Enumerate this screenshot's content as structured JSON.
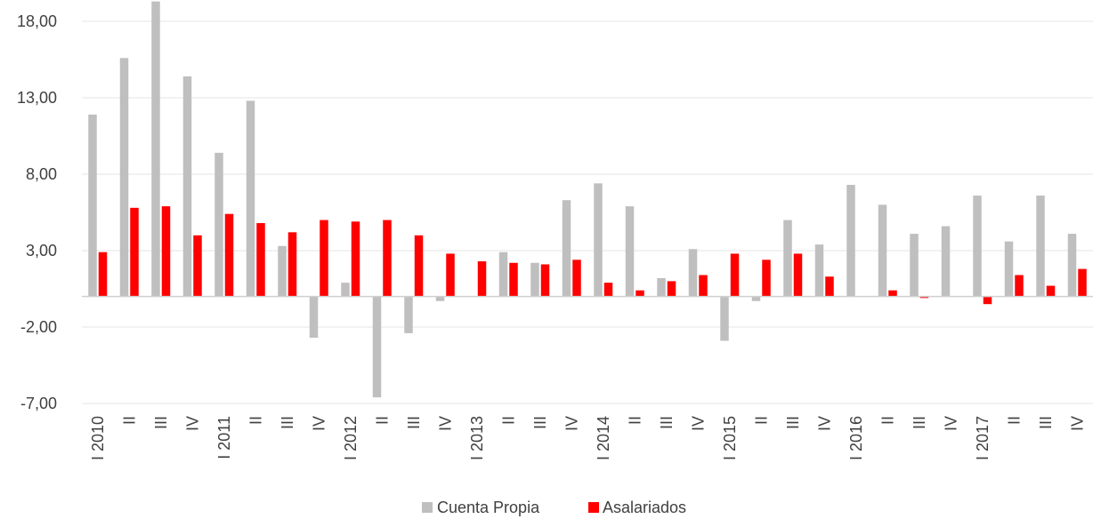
{
  "chart_data": {
    "type": "bar",
    "categories": [
      "I 2010",
      "II",
      "III",
      "IV",
      "I 2011",
      "II",
      "III",
      "IV",
      "I 2012",
      "II",
      "III",
      "IV",
      "I 2013",
      "II",
      "III",
      "IV",
      "I 2014",
      "II",
      "III",
      "IV",
      "I 2015",
      "II",
      "III",
      "IV",
      "I 2016",
      "II",
      "III",
      "IV",
      "I 2017",
      "II",
      "III",
      "IV"
    ],
    "series": [
      {
        "name": "Cuenta Propia",
        "color": "#bfbfbf",
        "values": [
          11.9,
          15.6,
          19.3,
          14.4,
          9.4,
          12.8,
          3.3,
          -2.7,
          0.9,
          -6.6,
          -2.4,
          -0.3,
          0.0,
          2.9,
          2.2,
          6.3,
          7.4,
          5.9,
          1.2,
          3.1,
          -2.9,
          -0.3,
          5.0,
          3.4,
          7.3,
          6.0,
          4.1,
          4.6,
          6.6,
          3.6,
          6.6,
          4.1
        ]
      },
      {
        "name": "Asalariados",
        "color": "#ff0000",
        "values": [
          2.9,
          5.8,
          5.9,
          4.0,
          5.4,
          4.8,
          4.2,
          5.0,
          4.9,
          5.0,
          4.0,
          2.8,
          2.3,
          2.2,
          2.1,
          2.4,
          0.9,
          0.4,
          1.0,
          1.4,
          2.8,
          2.4,
          2.8,
          1.3,
          0.0,
          0.4,
          -0.1,
          0.0,
          -0.5,
          1.4,
          0.7,
          1.8
        ]
      }
    ],
    "yticks": [
      "18,00",
      "13,00",
      "8,00",
      "3,00",
      "-2,00",
      "-7,00"
    ],
    "ytick_values": [
      18,
      13,
      8,
      3,
      -2,
      -7
    ],
    "ylim": [
      -7,
      20
    ],
    "grid": true,
    "legend_position": "bottom-center",
    "title": "",
    "xlabel": "",
    "ylabel": ""
  }
}
